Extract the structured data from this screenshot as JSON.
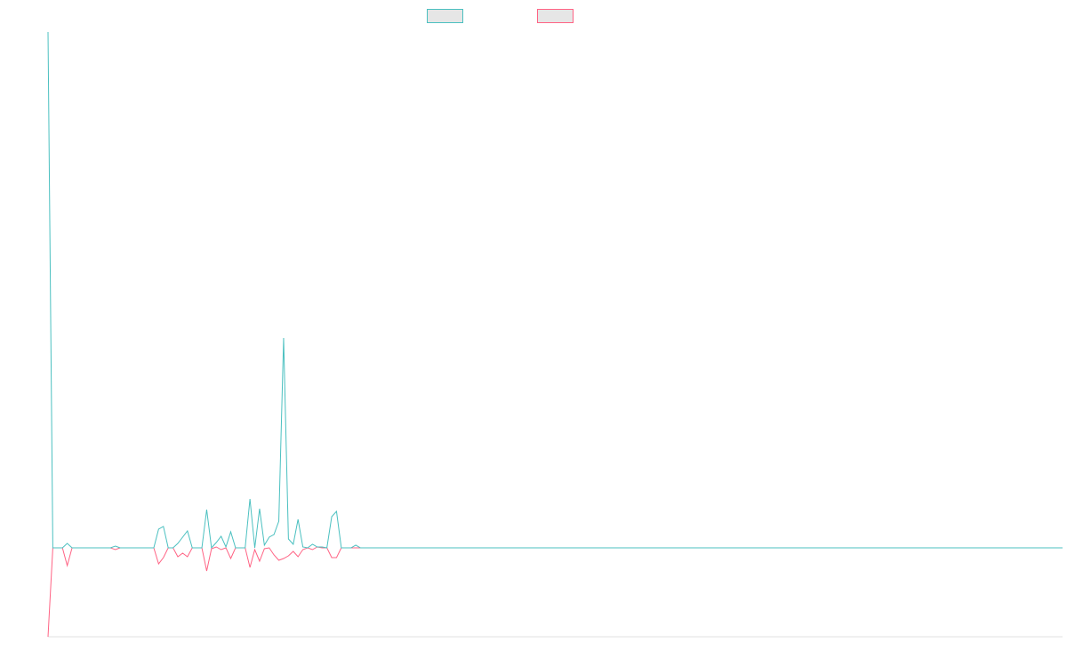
{
  "chart_data": {
    "type": "line",
    "x": [
      0,
      1,
      2,
      3,
      4,
      5,
      6,
      7,
      8,
      9,
      10,
      11,
      12,
      13,
      14,
      15,
      16,
      17,
      18,
      19,
      20,
      21,
      22,
      23,
      24,
      25,
      26,
      27,
      28,
      29,
      30,
      31,
      32,
      33,
      34,
      35,
      36,
      37,
      38,
      39,
      40,
      41,
      42,
      43,
      44,
      45,
      46,
      47,
      48,
      49,
      50,
      51,
      52,
      53,
      54,
      55,
      56,
      57,
      58,
      59,
      60,
      61,
      62,
      63,
      64,
      65,
      66,
      211
    ],
    "series": [
      {
        "color": "#4bc0c0",
        "values": [
          58,
          0,
          0,
          0,
          0.5,
          0,
          0,
          0,
          0,
          0,
          0,
          0,
          0,
          0,
          0.2,
          0,
          0,
          0,
          0,
          0,
          0,
          0,
          0,
          2.1,
          2.4,
          0,
          0,
          0.5,
          1.2,
          1.9,
          0,
          0,
          0,
          4.3,
          0,
          0.6,
          1.3,
          0.1,
          1.8,
          0,
          0,
          0,
          5.5,
          0,
          4.4,
          0.3,
          1.2,
          1.5,
          3.0,
          23.6,
          1.0,
          0.4,
          3.2,
          0.1,
          0,
          0.4,
          0.1,
          0.1,
          0,
          3.5,
          4.1,
          0,
          0,
          0,
          0.3,
          0,
          0,
          0
        ]
      },
      {
        "color": "#ff6384",
        "values": [
          -10,
          0,
          0,
          0,
          -2,
          0,
          0,
          0,
          0,
          0,
          0,
          0,
          0,
          0,
          -0.2,
          0,
          0,
          0,
          0,
          0,
          0,
          0,
          0,
          -1.8,
          -1.1,
          0,
          0,
          -1,
          -0.6,
          -1,
          0,
          0,
          0,
          -2.6,
          -0.1,
          0.1,
          -0.2,
          0,
          -1.2,
          0,
          0,
          0,
          -2.2,
          -0.2,
          -1.5,
          -0.1,
          0,
          -0.8,
          -1.4,
          -1.2,
          -0.9,
          -0.4,
          -1,
          -0.2,
          0,
          -0.2,
          0.1,
          0,
          0,
          -1.1,
          -1.1,
          0,
          0,
          0,
          0,
          0,
          0,
          0
        ]
      }
    ],
    "xlim": [
      0,
      211
    ],
    "ylim": [
      -10,
      58
    ]
  }
}
